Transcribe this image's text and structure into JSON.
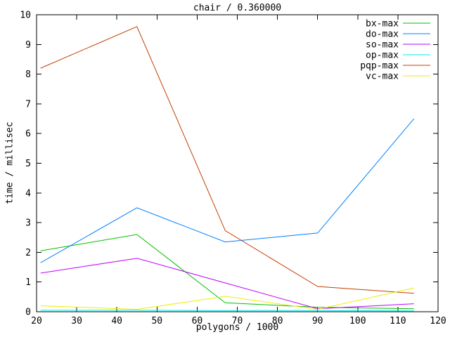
{
  "figure": {
    "title": "chair / 0.360000",
    "xlabel": "polygons / 1000",
    "ylabel": "time / millisec"
  },
  "chart_data": {
    "type": "line",
    "title": "chair / 0.360000",
    "xlabel": "polygons / 1000",
    "ylabel": "time / millisec",
    "xlim": [
      20,
      120
    ],
    "ylim": [
      0,
      10
    ],
    "xticks": [
      20,
      30,
      40,
      50,
      60,
      70,
      80,
      90,
      100,
      110,
      120
    ],
    "yticks": [
      0,
      1,
      2,
      3,
      4,
      5,
      6,
      7,
      8,
      9,
      10
    ],
    "grid": false,
    "legend_position": "top-right-inside",
    "axis_color": "#000000",
    "background": "#ffffff",
    "x": [
      21,
      45,
      67,
      90,
      114
    ],
    "series": [
      {
        "name": "bx-max",
        "color": "#00c000",
        "values": [
          2.05,
          2.6,
          0.3,
          0.15,
          0.1
        ]
      },
      {
        "name": "do-max",
        "color": "#0080ff",
        "values": [
          1.65,
          3.5,
          2.35,
          2.65,
          6.5
        ]
      },
      {
        "name": "so-max",
        "color": "#c000ff",
        "values": [
          1.3,
          1.8,
          0.97,
          0.1,
          0.27
        ]
      },
      {
        "name": "op-max",
        "color": "#00eeee",
        "values": [
          0.05,
          0.05,
          0.04,
          0.04,
          0.03
        ]
      },
      {
        "name": "pqp-max",
        "color": "#c04000",
        "values": [
          8.2,
          9.6,
          2.73,
          0.85,
          0.62
        ]
      },
      {
        "name": "vc-max",
        "color": "#eeee00",
        "values": [
          0.2,
          0.08,
          0.52,
          0.08,
          0.8
        ]
      }
    ]
  }
}
